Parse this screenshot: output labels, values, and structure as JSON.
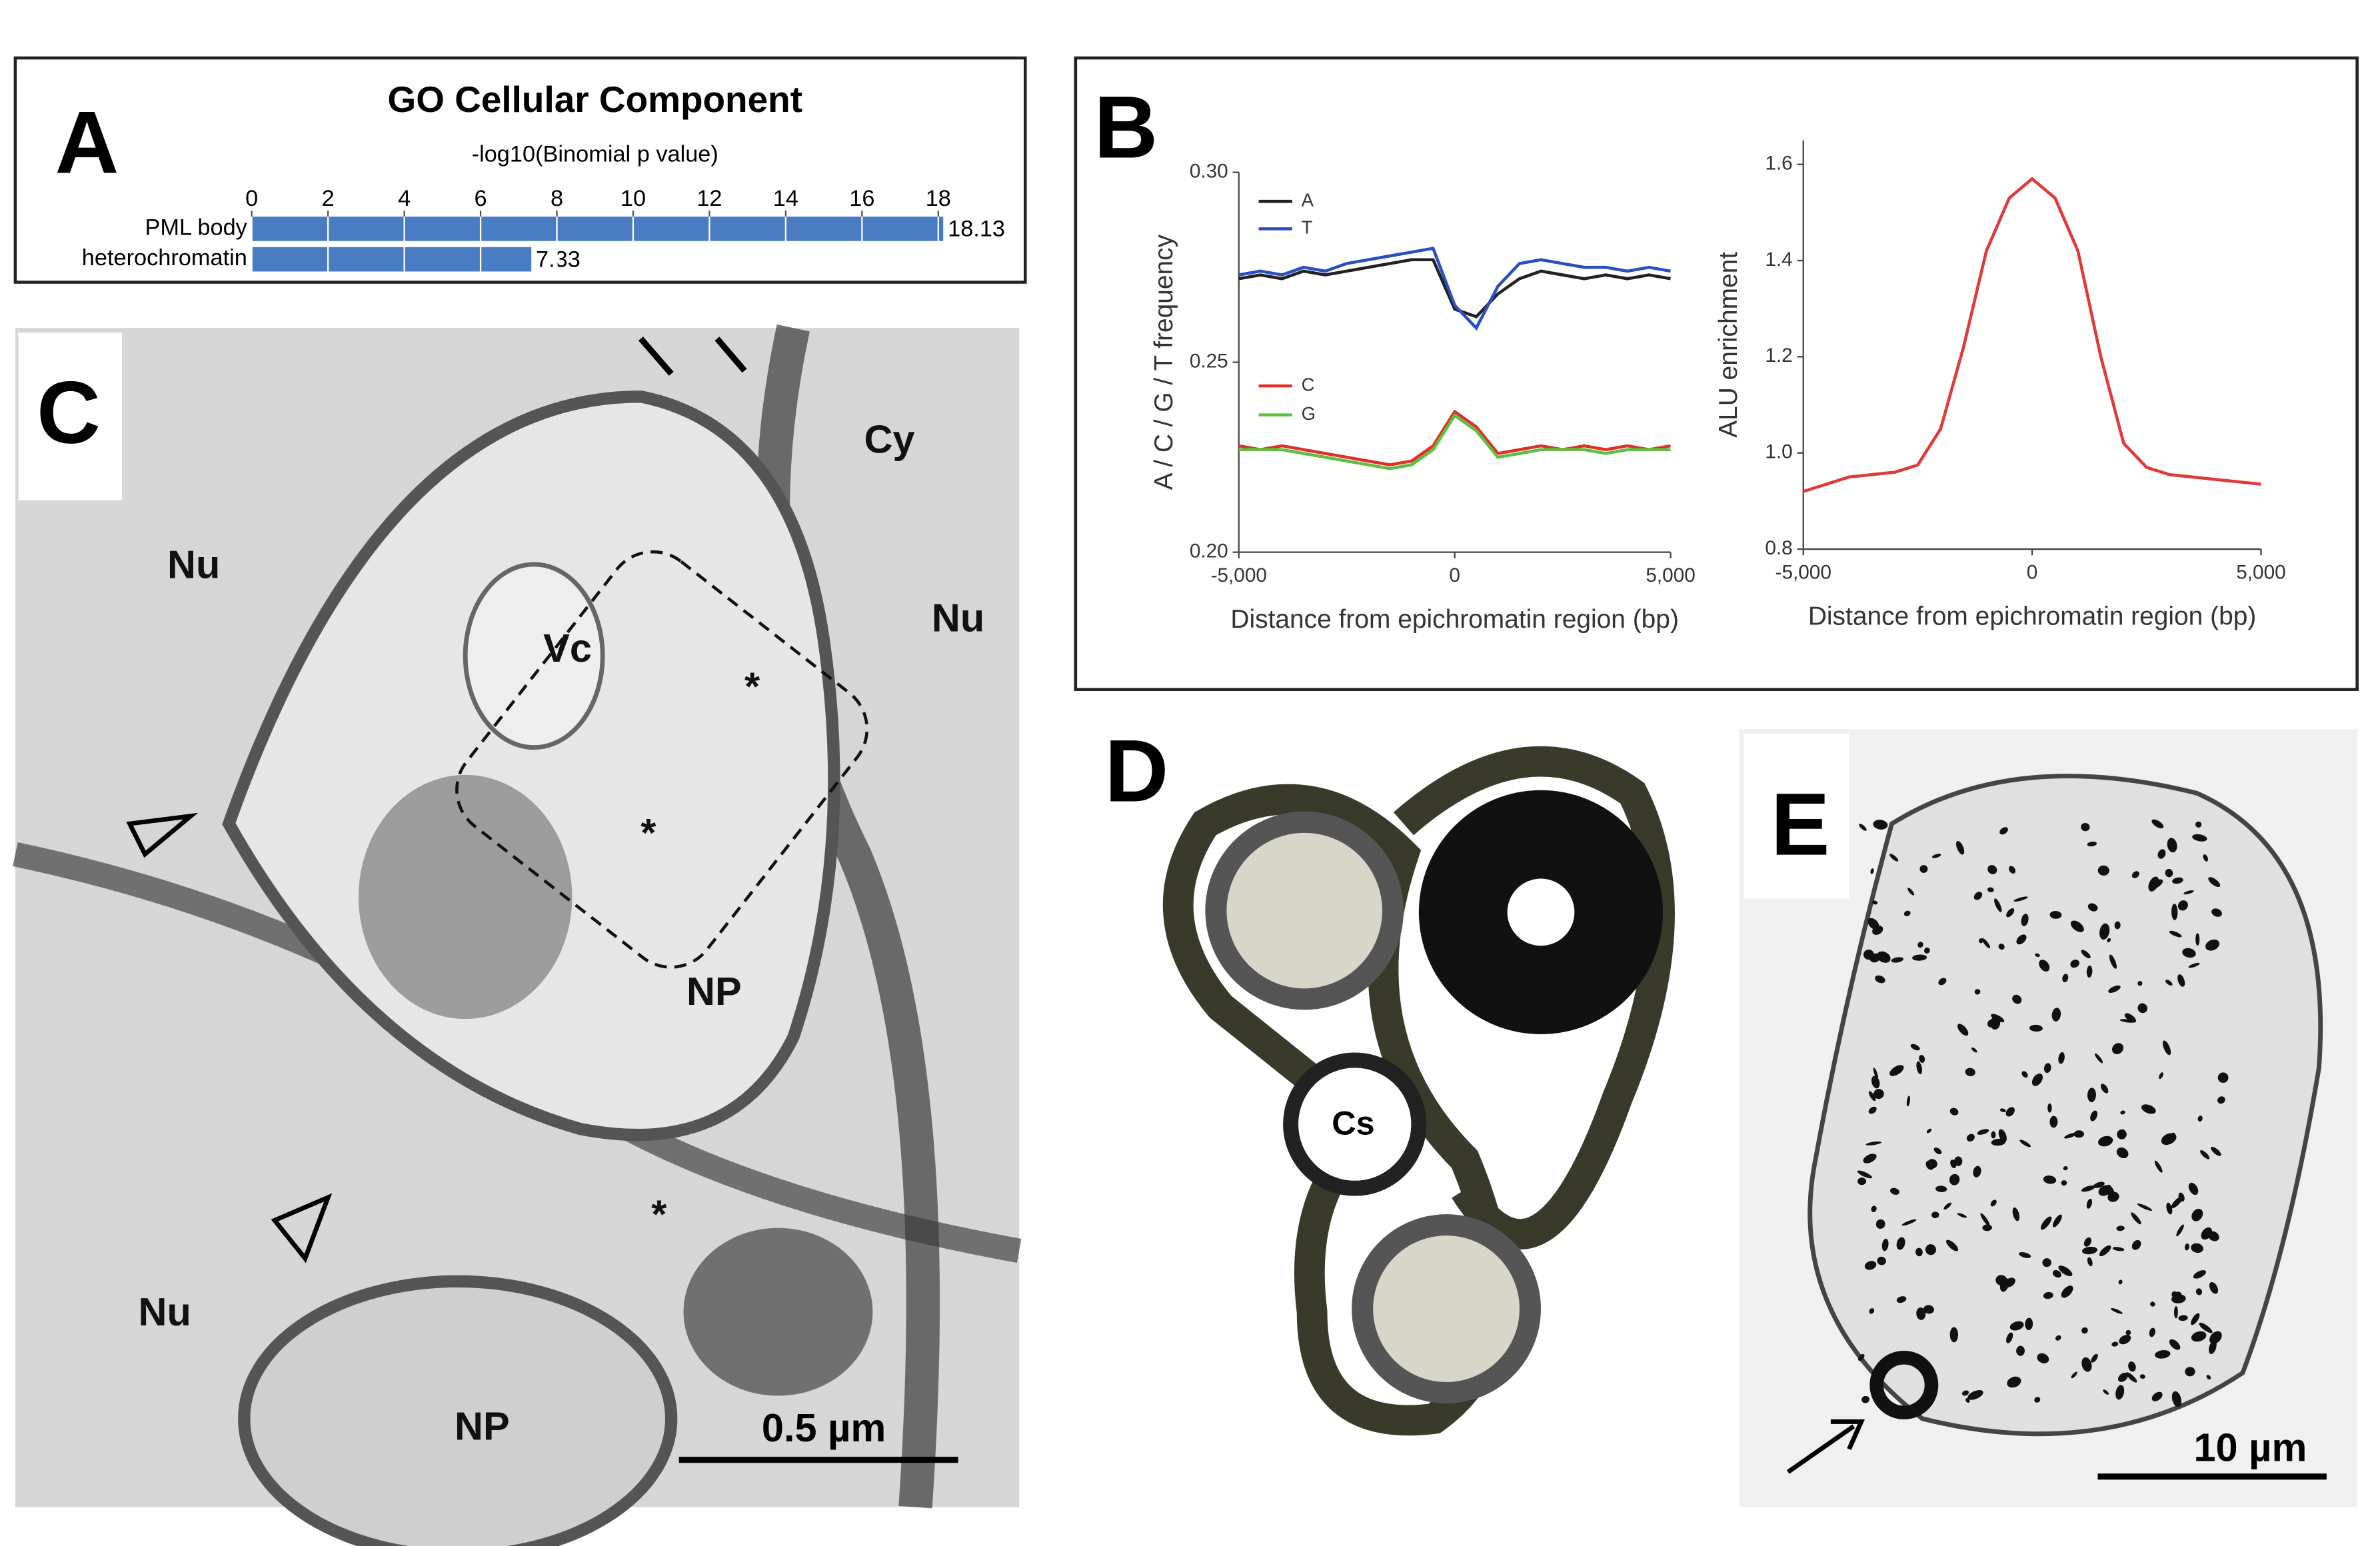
{
  "chart_data": [
    {
      "type": "bar",
      "title": "GO Cellular Component",
      "x_label": "-log10(Binomial p value)",
      "categories": [
        "PML body",
        "heterochromatin"
      ],
      "values": [
        18.13,
        7.33
      ],
      "color": "#4a7cc4",
      "xlim": [
        0,
        18
      ],
      "xticks": [
        0,
        2,
        4,
        6,
        8,
        10,
        12,
        14,
        16,
        18
      ],
      "grid": true
    },
    {
      "type": "line",
      "x_label": "Distance from epichromatin region (bp)",
      "y_label": "A / C / G / T frequency",
      "x": [
        -5000,
        -4500,
        -4000,
        -3500,
        -3000,
        -2500,
        -2000,
        -1500,
        -1000,
        -500,
        0,
        500,
        1000,
        1500,
        2000,
        2500,
        3000,
        3500,
        4000,
        4500,
        5000
      ],
      "xlim": [
        -5000,
        5000
      ],
      "xticks": [
        {
          "value": -5000,
          "label": "-5,000"
        },
        0,
        {
          "value": 5000,
          "label": "5,000"
        }
      ],
      "ylim": [
        0.2,
        0.3
      ],
      "yticks": [
        {
          "value": 0.2,
          "label": "0.20"
        },
        {
          "value": 0.25,
          "label": "0.25"
        },
        {
          "value": 0.3,
          "label": "0.30"
        }
      ],
      "series": [
        {
          "name": "A",
          "color": "#222222",
          "values": [
            0.272,
            0.273,
            0.272,
            0.274,
            0.273,
            0.274,
            0.275,
            0.276,
            0.277,
            0.277,
            0.264,
            0.262,
            0.268,
            0.272,
            0.274,
            0.273,
            0.272,
            0.273,
            0.272,
            0.273,
            0.272
          ]
        },
        {
          "name": "T",
          "color": "#2a4fc0",
          "values": [
            0.273,
            0.274,
            0.273,
            0.275,
            0.274,
            0.276,
            0.277,
            0.278,
            0.279,
            0.28,
            0.265,
            0.259,
            0.27,
            0.276,
            0.277,
            0.276,
            0.275,
            0.275,
            0.274,
            0.275,
            0.274
          ]
        },
        {
          "name": "C",
          "color": "#e0302a",
          "values": [
            0.228,
            0.227,
            0.228,
            0.227,
            0.226,
            0.225,
            0.224,
            0.223,
            0.224,
            0.228,
            0.237,
            0.233,
            0.226,
            0.227,
            0.228,
            0.227,
            0.228,
            0.227,
            0.228,
            0.227,
            0.228
          ]
        },
        {
          "name": "G",
          "color": "#5cc040",
          "values": [
            0.227,
            0.227,
            0.227,
            0.226,
            0.225,
            0.224,
            0.223,
            0.222,
            0.223,
            0.227,
            0.236,
            0.232,
            0.225,
            0.226,
            0.227,
            0.227,
            0.227,
            0.226,
            0.227,
            0.227,
            0.227
          ]
        }
      ]
    },
    {
      "type": "line",
      "x_label": "Distance from epichromatin region (bp)",
      "y_label": "ALU enrichment",
      "x": [
        -5000,
        -4500,
        -4000,
        -3500,
        -3000,
        -2500,
        -2000,
        -1500,
        -1000,
        -500,
        0,
        500,
        1000,
        1500,
        2000,
        2500,
        3000,
        3500,
        4000,
        4500,
        5000
      ],
      "xlim": [
        -5000,
        5000
      ],
      "xticks": [
        {
          "value": -5000,
          "label": "-5,000"
        },
        0,
        {
          "value": 5000,
          "label": "5,000"
        }
      ],
      "ylim": [
        0.8,
        1.65
      ],
      "yticks": [
        0.8,
        {
          "value": 1.0,
          "label": "1.0"
        },
        1.2,
        1.4,
        1.6
      ],
      "series": [
        {
          "name": "ALU",
          "color": "#e03a3a",
          "values": [
            0.92,
            0.935,
            0.95,
            0.955,
            0.96,
            0.975,
            1.05,
            1.22,
            1.42,
            1.53,
            1.57,
            1.53,
            1.42,
            1.2,
            1.02,
            0.97,
            0.955,
            0.95,
            0.945,
            0.94,
            0.935
          ]
        }
      ]
    }
  ],
  "panel_labels": [
    "A",
    "B",
    "C",
    "D",
    "E"
  ],
  "micrograph_c": {
    "labels": [
      "Nu",
      "Cy",
      "Nu",
      "Vc",
      "*",
      "*",
      "NP",
      "*",
      "Nu",
      "NP"
    ],
    "scale_bar": "0.5 µm"
  },
  "diagram_d": {
    "labels": [
      "Cs"
    ]
  },
  "micrograph_e": {
    "scale_bar": "10 µm"
  }
}
